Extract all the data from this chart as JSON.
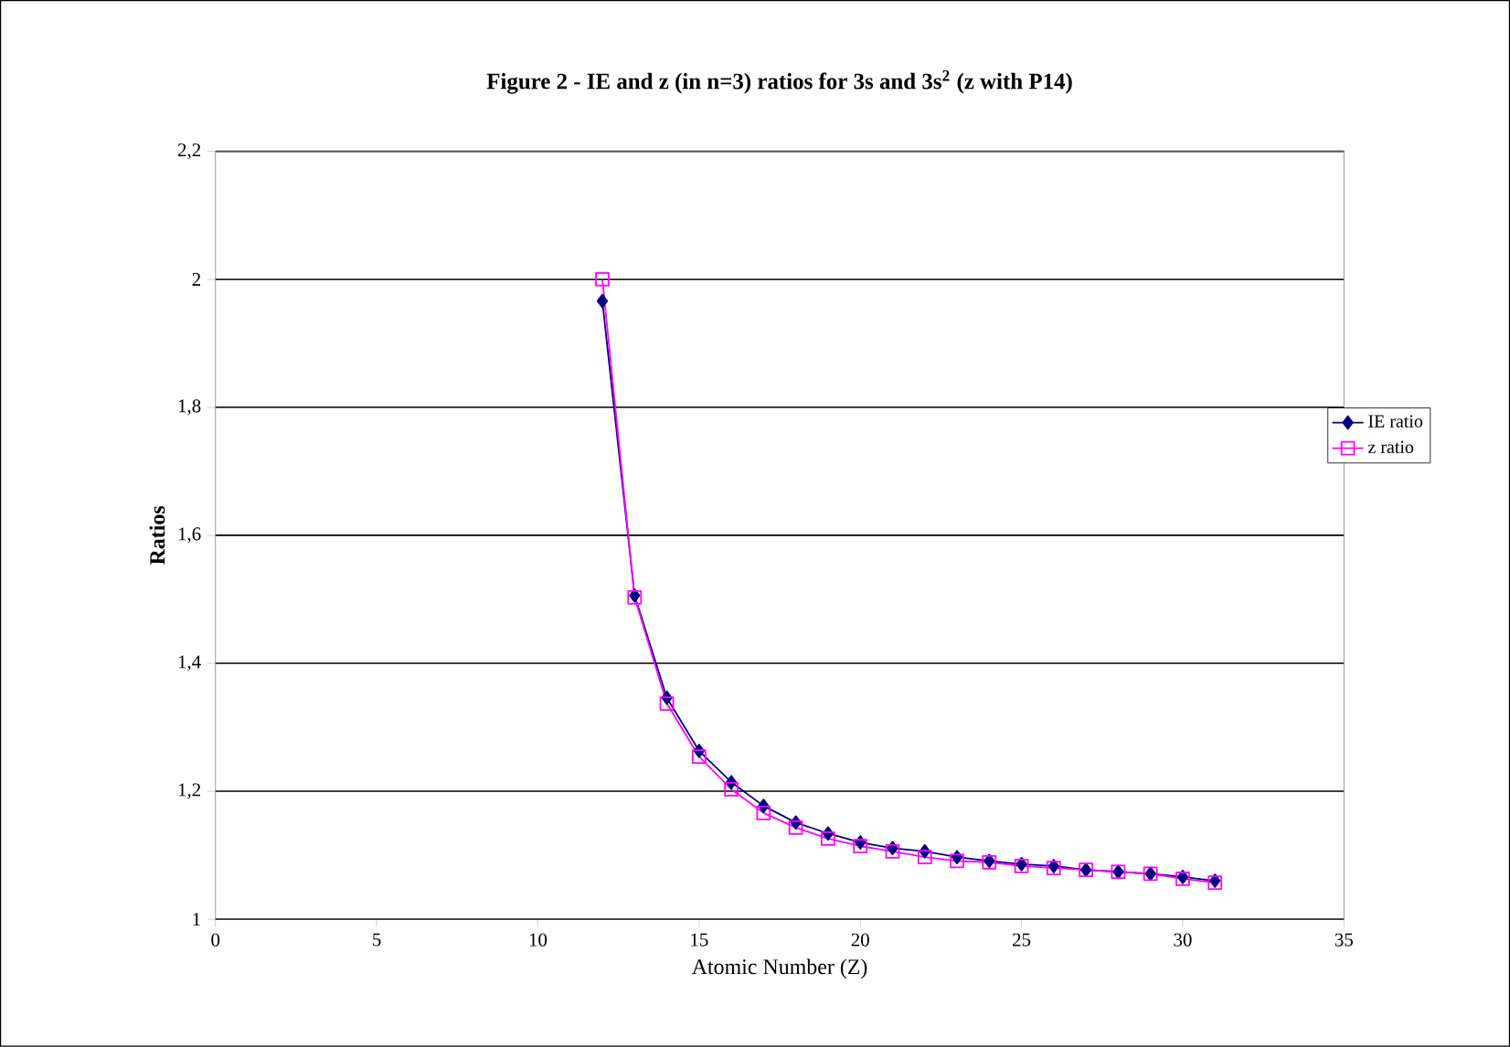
{
  "chart_data": {
    "type": "line",
    "title": "Figure 2 - IE and z (in n=3) ratios for 3s and 3s$^{2}$ (z with P14)",
    "xlabel": "Atomic Number (Z)",
    "ylabel": "Ratios",
    "x": [
      12,
      13,
      14,
      15,
      16,
      17,
      18,
      19,
      20,
      21,
      22,
      23,
      24,
      25,
      26,
      27,
      28,
      29,
      30,
      31
    ],
    "series": [
      {
        "name": "IE ratio",
        "color": "#000080",
        "marker": "diamond",
        "values": [
          1.966,
          1.506,
          1.346,
          1.263,
          1.214,
          1.177,
          1.151,
          1.134,
          1.12,
          1.111,
          1.106,
          1.097,
          1.091,
          1.086,
          1.083,
          1.077,
          1.074,
          1.071,
          1.066,
          1.06
        ]
      },
      {
        "name": "z ratio",
        "color": "#ff00ff",
        "marker": "square",
        "values": [
          2.0,
          1.503,
          1.337,
          1.254,
          1.203,
          1.166,
          1.143,
          1.126,
          1.114,
          1.106,
          1.097,
          1.091,
          1.089,
          1.083,
          1.08,
          1.077,
          1.074,
          1.071,
          1.063,
          1.057
        ]
      }
    ],
    "xlim": [
      0,
      35
    ],
    "xticks": [
      0,
      5,
      10,
      15,
      20,
      25,
      30,
      35
    ],
    "ylim": [
      1,
      2.2
    ],
    "yticks": [
      {
        "value": 1,
        "label": "1"
      },
      {
        "value": 1.2,
        "label": "1,2"
      },
      {
        "value": 1.4,
        "label": "1,4"
      },
      {
        "value": 1.6,
        "label": "1,6"
      },
      {
        "value": 1.8,
        "label": "1,8"
      },
      {
        "value": 2,
        "label": "2"
      },
      {
        "value": 2.2,
        "label": "2,2"
      }
    ],
    "grid": "y",
    "legend": "right",
    "line_style": "solid"
  }
}
